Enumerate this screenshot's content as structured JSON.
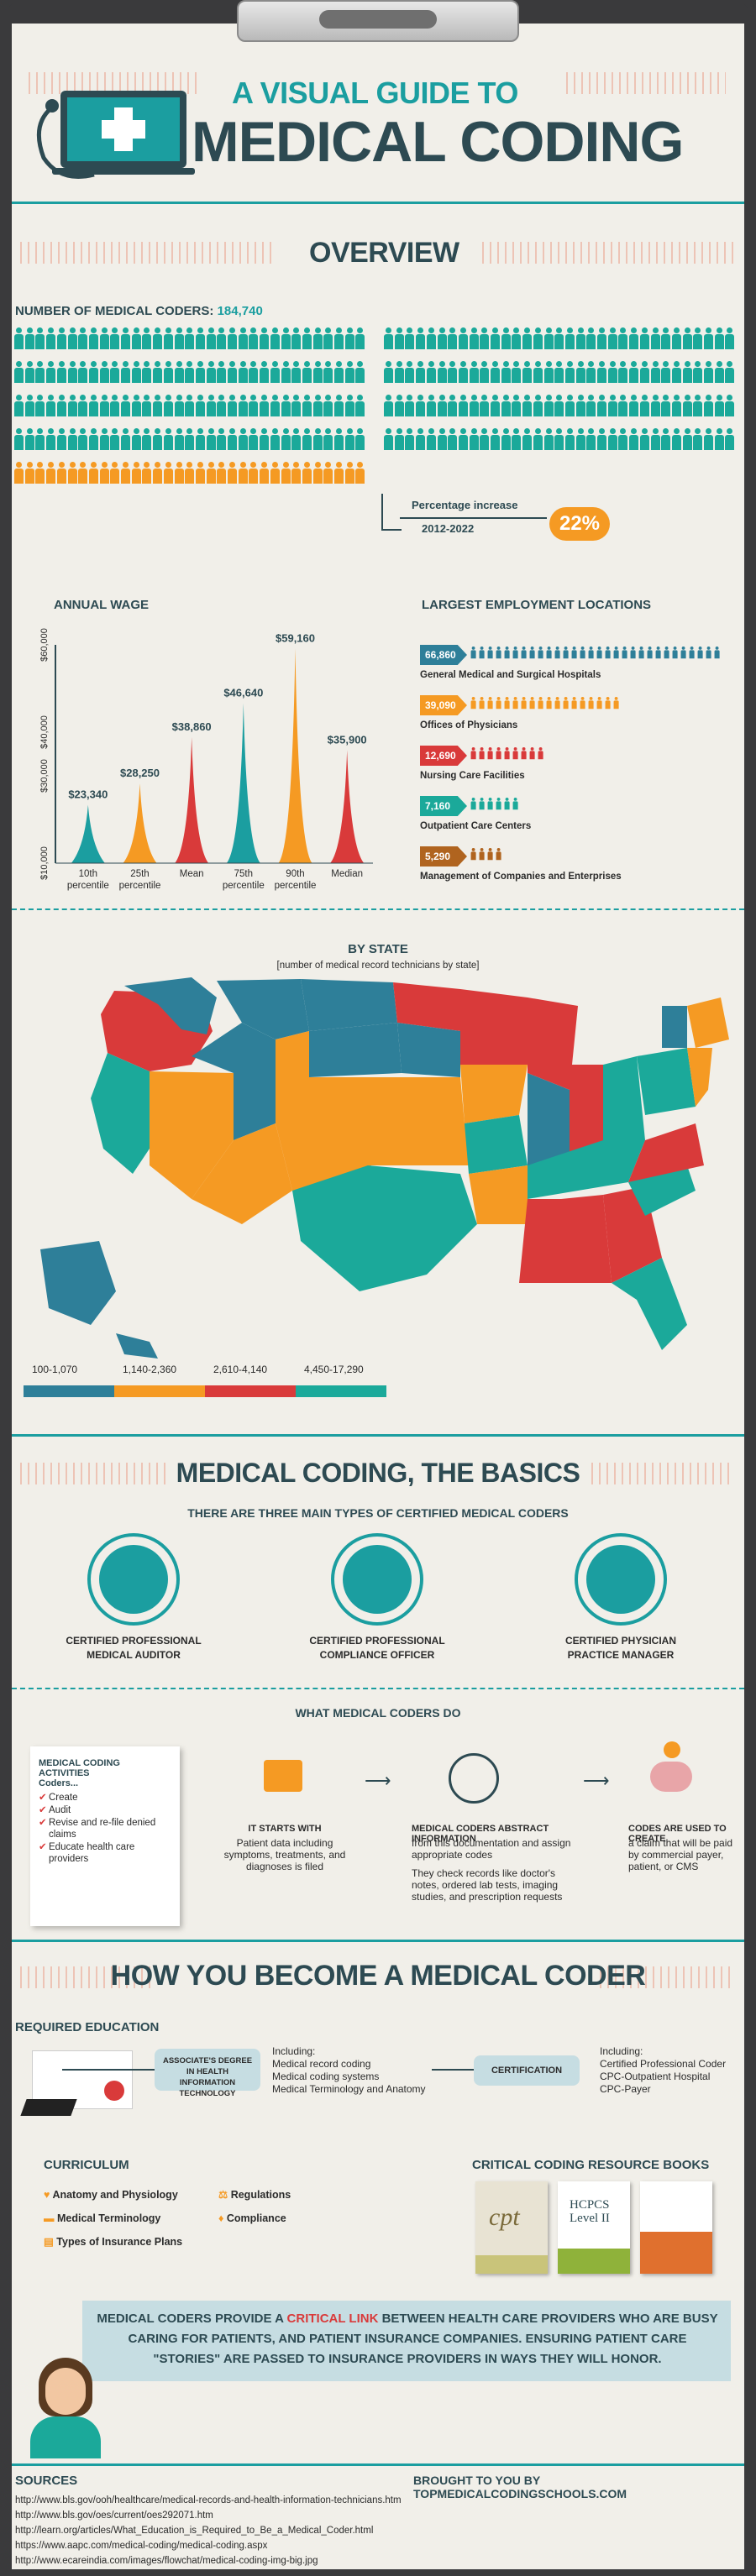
{
  "header": {
    "title_line1": "A VISUAL GUIDE TO",
    "title_line2": "MEDICAL CODING"
  },
  "overview": {
    "title": "OVERVIEW",
    "coders_label": "NUMBER OF MEDICAL CODERS:",
    "coders_value": "184,740",
    "increase_label": "Percentage increase",
    "increase_years": "2012-2022",
    "increase_value": "22%"
  },
  "wage": {
    "title": "ANNUAL WAGE",
    "y_ticks": [
      "$10,000",
      "$30,000",
      "$40,000",
      "$60,000"
    ],
    "colors": {
      "teal": "#1b9ea0",
      "orange": "#f59a23",
      "red": "#d93a3a"
    }
  },
  "chart_data": {
    "type": "bar",
    "title": "ANNUAL WAGE",
    "categories": [
      "10th percentile",
      "25th percentile",
      "Mean",
      "75th percentile",
      "90th percentile",
      "Median"
    ],
    "values": [
      23340,
      28250,
      38860,
      46640,
      59160,
      35900
    ],
    "value_labels": [
      "$23,340",
      "$28,250",
      "$38,860",
      "$46,640",
      "$59,160",
      "$35,900"
    ],
    "ylim": [
      10000,
      60000
    ]
  },
  "employment": {
    "title": "LARGEST EMPLOYMENT LOCATIONS",
    "items": [
      {
        "value": "66,860",
        "label": "General Medical and Surgical Hospitals",
        "color": "#2e7f99",
        "count": 1
      },
      {
        "value": "39,090",
        "label": "Offices of Physicians",
        "color": "#f59a23",
        "count": 0.6
      },
      {
        "value": "12,690",
        "label": "Nursing Care Facilities",
        "color": "#d93a3a",
        "count": 0.3
      },
      {
        "value": "7,160",
        "label": "Outpatient Care Centers",
        "color": "#1ba99a",
        "count": 0.2
      },
      {
        "value": "5,290",
        "label": "Management of Companies and Enterprises",
        "color": "#b0641f",
        "count": 0.12
      }
    ]
  },
  "bystate": {
    "title": "BY STATE",
    "subtitle": "[number of medical record technicians by state]",
    "legend": [
      {
        "label": "100-1,070",
        "color": "#2e7f99"
      },
      {
        "label": "1,140-2,360",
        "color": "#f59a23"
      },
      {
        "label": "2,610-4,140",
        "color": "#d93a3a"
      },
      {
        "label": "4,450-17,290",
        "color": "#1ba99a"
      }
    ]
  },
  "basics": {
    "title": "MEDICAL CODING, THE BASICS",
    "subtitle": "THERE ARE THREE MAIN TYPES OF CERTIFIED MEDICAL CODERS",
    "types": [
      {
        "line1": "CERTIFIED PROFESSIONAL",
        "line2": "MEDICAL AUDITOR"
      },
      {
        "line1": "CERTIFIED PROFESSIONAL",
        "line2": "COMPLIANCE OFFICER"
      },
      {
        "line1": "CERTIFIED PHYSICIAN",
        "line2": "PRACTICE MANAGER"
      }
    ]
  },
  "whatdo": {
    "title": "WHAT MEDICAL CODERS DO",
    "card_title_1": "MEDICAL CODING ACTIVITIES",
    "card_title_2": "Coders...",
    "card_items": [
      "Create",
      "Audit",
      "Revise and re-file denied claims",
      "Educate health care providers"
    ],
    "step1_title": "IT STARTS WITH",
    "step1_text": "Patient data including symptoms, treatments, and diagnoses is filed",
    "step2_title": "MEDICAL CODERS ABSTRACT INFORMATION",
    "step2_text": "from this documentation and assign appropriate codes",
    "step2_text2": "They check records like doctor's notes, ordered lab tests, imaging studies, and prescription requests",
    "step3_title": "CODES ARE USED TO CREATE",
    "step3_text": "a claim that will be paid by commercial payer, patient, or CMS"
  },
  "become": {
    "title": "HOW YOU BECOME A MEDICAL CODER",
    "req_title": "REQUIRED EDUCATION",
    "degree": "ASSOCIATE'S DEGREE IN HEALTH INFORMATION TECHNOLOGY",
    "including1": "Including:",
    "inc1_items": [
      "Medical record coding",
      "Medical coding systems",
      "Medical Terminology and Anatomy"
    ],
    "cert": "CERTIFICATION",
    "including2": "Including:",
    "inc2_items": [
      "Certified Professional Coder",
      "CPC-Outpatient Hospital",
      "CPC-Payer"
    ],
    "curriculum_title": "CURRICULUM",
    "curriculum": [
      "Anatomy and Physiology",
      "Medical Terminology",
      "Types of Insurance Plans",
      "Regulations",
      "Compliance"
    ],
    "books_title": "CRITICAL CODING RESOURCE BOOKS",
    "book1": "cpt",
    "book2": "HCPCS Level II"
  },
  "quote": {
    "part1": "MEDICAL CODERS PROVIDE A ",
    "highlight": "CRITICAL LINK",
    "part2": " BETWEEN HEALTH CARE PROVIDERS WHO ARE BUSY CARING FOR PATIENTS, AND PATIENT INSURANCE COMPANIES. ENSURING PATIENT CARE \"STORIES\" ARE PASSED TO INSURANCE PROVIDERS IN WAYS THEY WILL HONOR."
  },
  "sources": {
    "title": "SOURCES",
    "credit": "BROUGHT TO YOU BY TOPMEDICALCODINGSCHOOLS.COM",
    "links": [
      "http://www.bls.gov/ooh/healthcare/medical-records-and-health-information-technicians.htm",
      "http://www.bls.gov/oes/current/oes292071.htm",
      "http://learn.org/articles/What_Education_is_Required_to_Be_a_Medical_Coder.html",
      "https://www.aapc.com/medical-coding/medical-coding.aspx",
      "http://www.ecareindia.com/images/flowchat/medical-coding-img-big.jpg"
    ]
  }
}
